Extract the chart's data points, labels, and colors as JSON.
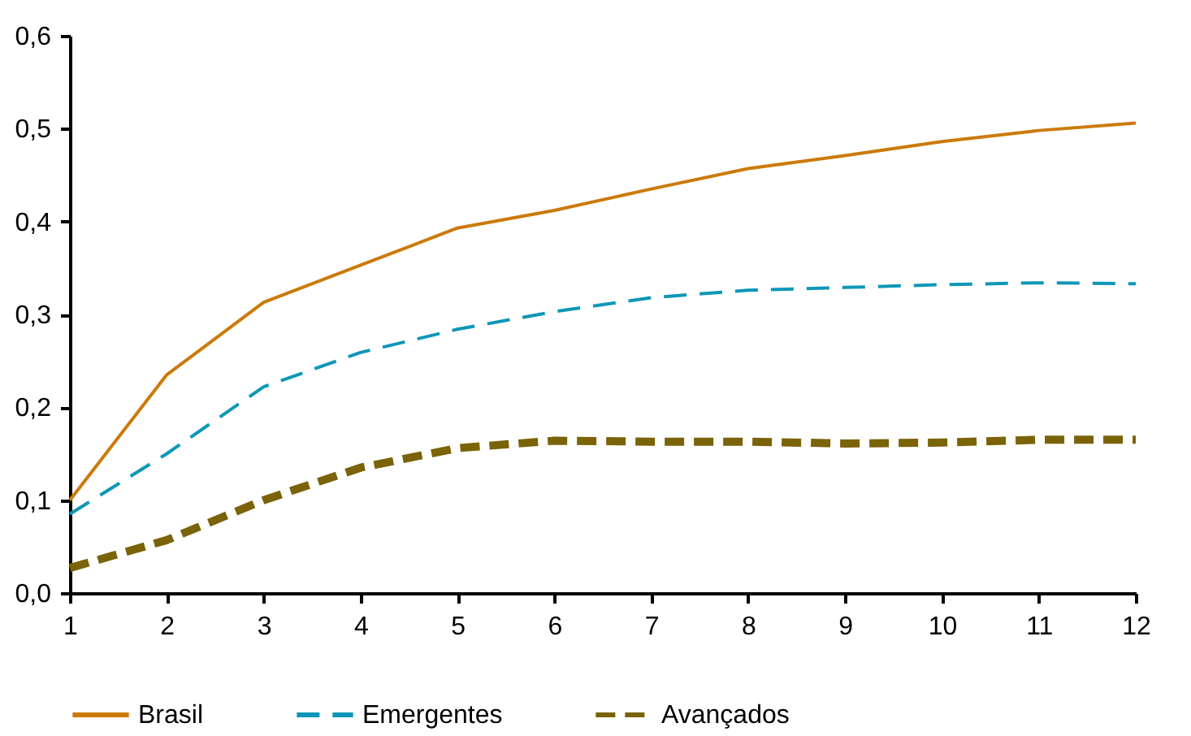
{
  "chart_data": {
    "type": "line",
    "x": [
      1,
      2,
      3,
      4,
      5,
      6,
      7,
      8,
      9,
      10,
      11,
      12
    ],
    "xlim": [
      1,
      12
    ],
    "xticks": [
      1,
      2,
      3,
      4,
      5,
      6,
      7,
      8,
      9,
      10,
      11,
      12
    ],
    "ylim": [
      0,
      0.6
    ],
    "yticks": [
      {
        "value": 0,
        "label": "0,0"
      },
      {
        "value": 0.1,
        "label": "0,1"
      },
      {
        "value": 0.2,
        "label": "0,2"
      },
      {
        "value": 0.3,
        "label": "0,3"
      },
      {
        "value": 0.4,
        "label": "0,4"
      },
      {
        "value": 0.5,
        "label": "0,5"
      },
      {
        "value": 0.6,
        "label": "0,6"
      }
    ],
    "grid": false,
    "legend": "bottom",
    "marker": "none",
    "series": [
      {
        "name": "Brasil",
        "color": "#cc7a0a",
        "line_style": "solid",
        "values": [
          0.1,
          0.235,
          0.313,
          0.353,
          0.393,
          0.412,
          0.435,
          0.457,
          0.471,
          0.486,
          0.498,
          0.506
        ]
      },
      {
        "name": "Emergentes",
        "color": "#0e97b8",
        "line_style": "dashed",
        "values": [
          0.085,
          0.15,
          0.222,
          0.259,
          0.284,
          0.303,
          0.318,
          0.326,
          0.329,
          0.332,
          0.334,
          0.333
        ]
      },
      {
        "name": "Avançados",
        "color": "#7a6308",
        "line_style": "dashed",
        "values": [
          0.027,
          0.057,
          0.1,
          0.135,
          0.156,
          0.164,
          0.163,
          0.163,
          0.161,
          0.162,
          0.165,
          0.165
        ]
      }
    ]
  }
}
